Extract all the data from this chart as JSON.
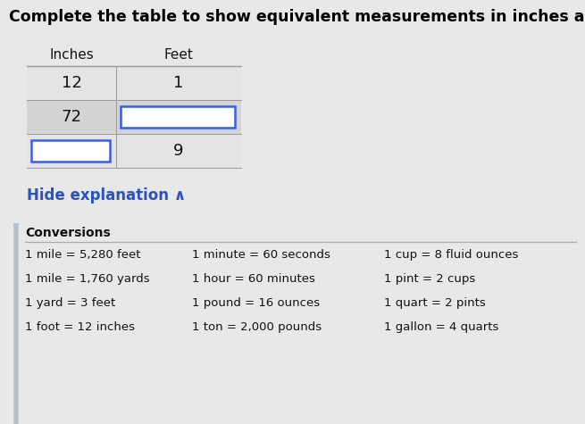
{
  "title": "Complete the table to show equivalent measurements in inches and feet.",
  "title_fontsize": 12.5,
  "title_color": "#000000",
  "bg_color": "#e8e8e8",
  "hide_explanation_text": "Hide explanation ∧",
  "hide_explanation_color": "#2a52be",
  "conversions_title": "Conversions",
  "table_header": [
    "Inches",
    "Feet"
  ],
  "table_rows": [
    {
      "inches": "12",
      "feet": "1",
      "inches_box": false,
      "feet_box": false
    },
    {
      "inches": "72",
      "feet": "",
      "inches_box": false,
      "feet_box": true
    },
    {
      "inches": "",
      "feet": "9",
      "inches_box": true,
      "feet_box": false
    }
  ],
  "conv_col1": [
    "1 mile = 5,280 feet",
    "1 mile = 1,760 yards",
    "1 yard = 3 feet",
    "1 foot = 12 inches"
  ],
  "conv_col2": [
    "1 minute = 60 seconds",
    "1 hour = 60 minutes",
    "1 pound = 16 ounces",
    "1 ton = 2,000 pounds"
  ],
  "conv_col3": [
    "1 cup = 8 fluid ounces",
    "1 pint = 2 cups",
    "1 quart = 2 pints",
    "1 gallon = 4 quarts"
  ],
  "row_even_color": "#e4e4e4",
  "row_odd_color": "#d4d4d4",
  "input_box_border": "#3a5fd9",
  "left_bar_color": "#b8bec4",
  "font_family": "DejaVu Sans"
}
